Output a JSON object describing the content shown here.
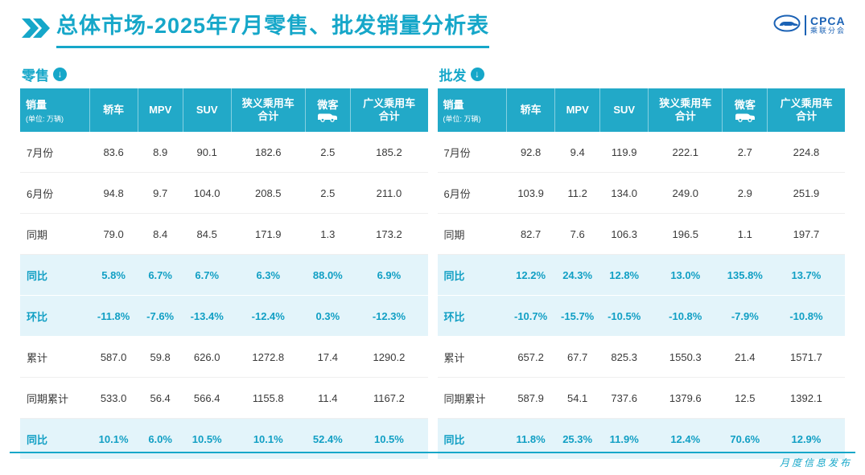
{
  "title": "总体市场-2025年7月零售、批发销量分析表",
  "logo": {
    "name": "CPCA",
    "subname": "乘联分会"
  },
  "footer": "月度信息发布",
  "accent_color": "#16a7c9",
  "header_bg_color": "#22a9c8",
  "percent_row_bg_color": "#e3f4fa",
  "tables": [
    {
      "key": "retail",
      "label": "零售",
      "header": {
        "first": "销量",
        "unit": "(单位: 万辆)",
        "cols": [
          {
            "key": "sedan",
            "label": "轿车"
          },
          {
            "key": "mpv",
            "label": "MPV"
          },
          {
            "key": "suv",
            "label": "SUV"
          },
          {
            "key": "narrow-pv-total",
            "label": "狭义乘用车\n合计"
          },
          {
            "key": "microvan",
            "label": "微客",
            "icon": "van-icon"
          },
          {
            "key": "broad-pv-total",
            "label": "广义乘用车\n合计"
          }
        ]
      },
      "rows": [
        {
          "key": "july",
          "label": "7月份",
          "type": "normal",
          "values": [
            "83.6",
            "8.9",
            "90.1",
            "182.6",
            "2.5",
            "185.2"
          ]
        },
        {
          "key": "june",
          "label": "6月份",
          "type": "normal",
          "values": [
            "94.8",
            "9.7",
            "104.0",
            "208.5",
            "2.5",
            "211.0"
          ]
        },
        {
          "key": "prev-year",
          "label": "同期",
          "type": "normal",
          "values": [
            "79.0",
            "8.4",
            "84.5",
            "171.9",
            "1.3",
            "173.2"
          ]
        },
        {
          "key": "yoy",
          "label": "同比",
          "type": "percent",
          "values": [
            "5.8%",
            "6.7%",
            "6.7%",
            "6.3%",
            "88.0%",
            "6.9%"
          ]
        },
        {
          "key": "mom",
          "label": "环比",
          "type": "percent",
          "values": [
            "-11.8%",
            "-7.6%",
            "-13.4%",
            "-12.4%",
            "0.3%",
            "-12.3%"
          ]
        },
        {
          "key": "cumulative",
          "label": "累计",
          "type": "normal",
          "values": [
            "587.0",
            "59.8",
            "626.0",
            "1272.8",
            "17.4",
            "1290.2"
          ]
        },
        {
          "key": "prev-cumulative",
          "label": "同期累计",
          "type": "normal",
          "values": [
            "533.0",
            "56.4",
            "566.4",
            "1155.8",
            "11.4",
            "1167.2"
          ]
        },
        {
          "key": "cumulative-yoy",
          "label": "同比",
          "type": "percent",
          "values": [
            "10.1%",
            "6.0%",
            "10.5%",
            "10.1%",
            "52.4%",
            "10.5%"
          ]
        }
      ]
    },
    {
      "key": "wholesale",
      "label": "批发",
      "header": {
        "first": "销量",
        "unit": "(单位: 万辆)",
        "cols": [
          {
            "key": "sedan",
            "label": "轿车"
          },
          {
            "key": "mpv",
            "label": "MPV"
          },
          {
            "key": "suv",
            "label": "SUV"
          },
          {
            "key": "narrow-pv-total",
            "label": "狭义乘用车\n合计"
          },
          {
            "key": "microvan",
            "label": "微客",
            "icon": "van-icon"
          },
          {
            "key": "broad-pv-total",
            "label": "广义乘用车\n合计"
          }
        ]
      },
      "rows": [
        {
          "key": "july",
          "label": "7月份",
          "type": "normal",
          "values": [
            "92.8",
            "9.4",
            "119.9",
            "222.1",
            "2.7",
            "224.8"
          ]
        },
        {
          "key": "june",
          "label": "6月份",
          "type": "normal",
          "values": [
            "103.9",
            "11.2",
            "134.0",
            "249.0",
            "2.9",
            "251.9"
          ]
        },
        {
          "key": "prev-year",
          "label": "同期",
          "type": "normal",
          "values": [
            "82.7",
            "7.6",
            "106.3",
            "196.5",
            "1.1",
            "197.7"
          ]
        },
        {
          "key": "yoy",
          "label": "同比",
          "type": "percent",
          "values": [
            "12.2%",
            "24.3%",
            "12.8%",
            "13.0%",
            "135.8%",
            "13.7%"
          ]
        },
        {
          "key": "mom",
          "label": "环比",
          "type": "percent",
          "values": [
            "-10.7%",
            "-15.7%",
            "-10.5%",
            "-10.8%",
            "-7.9%",
            "-10.8%"
          ]
        },
        {
          "key": "cumulative",
          "label": "累计",
          "type": "normal",
          "values": [
            "657.2",
            "67.7",
            "825.3",
            "1550.3",
            "21.4",
            "1571.7"
          ]
        },
        {
          "key": "prev-cumulative",
          "label": "同期累计",
          "type": "normal",
          "values": [
            "587.9",
            "54.1",
            "737.6",
            "1379.6",
            "12.5",
            "1392.1"
          ]
        },
        {
          "key": "cumulative-yoy",
          "label": "同比",
          "type": "percent",
          "values": [
            "11.8%",
            "25.3%",
            "11.9%",
            "12.4%",
            "70.6%",
            "12.9%"
          ]
        }
      ]
    }
  ]
}
